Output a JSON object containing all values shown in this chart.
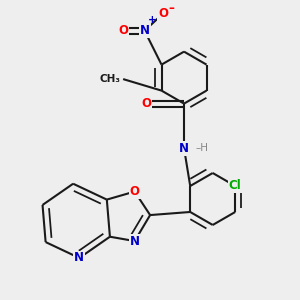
{
  "bg_color": "#eeeeee",
  "bond_color": "#1a1a1a",
  "bond_width": 1.5,
  "dbo": 0.05,
  "atom_colors": {
    "O": "#ff0000",
    "N": "#0000cc",
    "Cl": "#00aa00",
    "H": "#888888",
    "C": "#1a1a1a"
  },
  "font_size": 8.5
}
